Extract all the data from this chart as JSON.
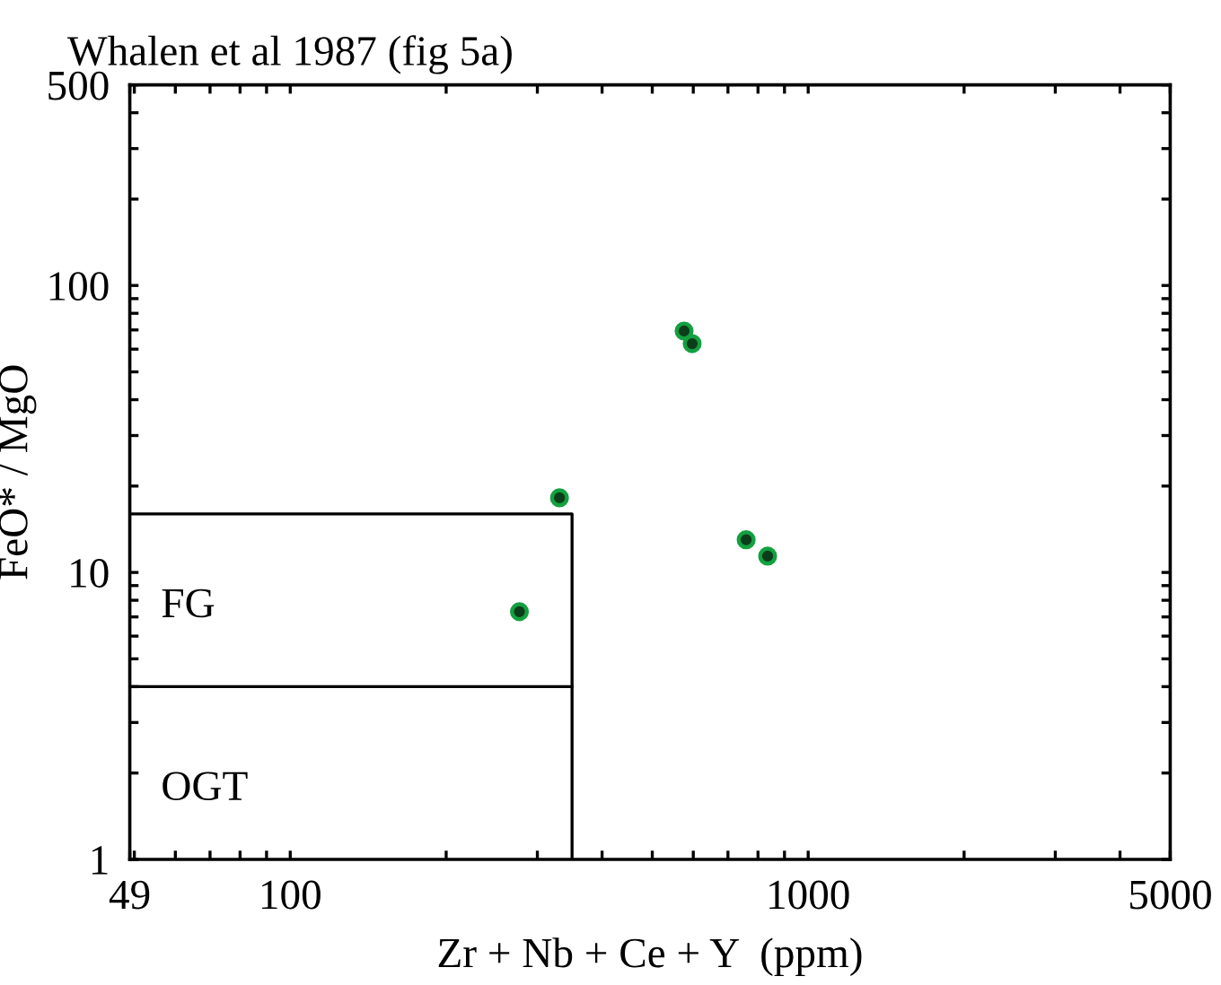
{
  "chart_data": {
    "type": "scatter",
    "title": "Whalen et al 1987 (fig 5a)",
    "xlabel": "Zr + Nb + Ce + Y  (ppm)",
    "ylabel": "FeO* / MgO",
    "log": "xy",
    "xlim": [
      49,
      5000
    ],
    "ylim": [
      1,
      500
    ],
    "xticks": [
      49,
      {
        "value": 50,
        "label": null
      },
      {
        "value": 60,
        "label": null
      },
      {
        "value": 70,
        "label": null
      },
      {
        "value": 80,
        "label": null
      },
      {
        "value": 90,
        "label": null
      },
      100,
      {
        "value": 200,
        "label": null
      },
      {
        "value": 300,
        "label": null
      },
      {
        "value": 400,
        "label": null
      },
      {
        "value": 500,
        "label": null
      },
      {
        "value": 600,
        "label": null
      },
      {
        "value": 700,
        "label": null
      },
      {
        "value": 800,
        "label": null
      },
      {
        "value": 900,
        "label": null
      },
      1000,
      {
        "value": 2000,
        "label": null
      },
      {
        "value": 3000,
        "label": null
      },
      {
        "value": 4000,
        "label": null
      },
      5000
    ],
    "yticks": [
      1,
      {
        "value": 2,
        "label": null
      },
      {
        "value": 3,
        "label": null
      },
      {
        "value": 4,
        "label": null
      },
      {
        "value": 5,
        "label": null
      },
      {
        "value": 6,
        "label": null
      },
      {
        "value": 7,
        "label": null
      },
      {
        "value": 8,
        "label": null
      },
      {
        "value": 9,
        "label": null
      },
      10,
      {
        "value": 20,
        "label": null
      },
      {
        "value": 30,
        "label": null
      },
      {
        "value": 40,
        "label": null
      },
      {
        "value": 50,
        "label": null
      },
      {
        "value": 60,
        "label": null
      },
      {
        "value": 70,
        "label": null
      },
      {
        "value": 80,
        "label": null
      },
      {
        "value": 90,
        "label": null
      },
      100,
      {
        "value": 200,
        "label": null
      },
      {
        "value": 300,
        "label": null
      },
      {
        "value": 400,
        "label": null
      },
      500
    ],
    "grid": false,
    "legend": false,
    "marker": "circle",
    "series": [
      {
        "color": "#13a040",
        "x": [
          277,
          331,
          576,
          597,
          759,
          835
        ],
        "values": [
          7.3,
          18.2,
          69.4,
          62.7,
          13.0,
          11.4
        ]
      },
      {
        "type": "line",
        "color": "#000000",
        "line_style": "solid",
        "marker": "none",
        "x": [
          49,
          350,
          350
        ],
        "values": [
          16,
          16,
          1
        ]
      },
      {
        "type": "line",
        "color": "#000000",
        "line_style": "solid",
        "marker": "none",
        "x": [
          49,
          350
        ],
        "values": [
          4,
          4
        ]
      }
    ],
    "annotations": [
      "FG",
      "OGT"
    ]
  }
}
